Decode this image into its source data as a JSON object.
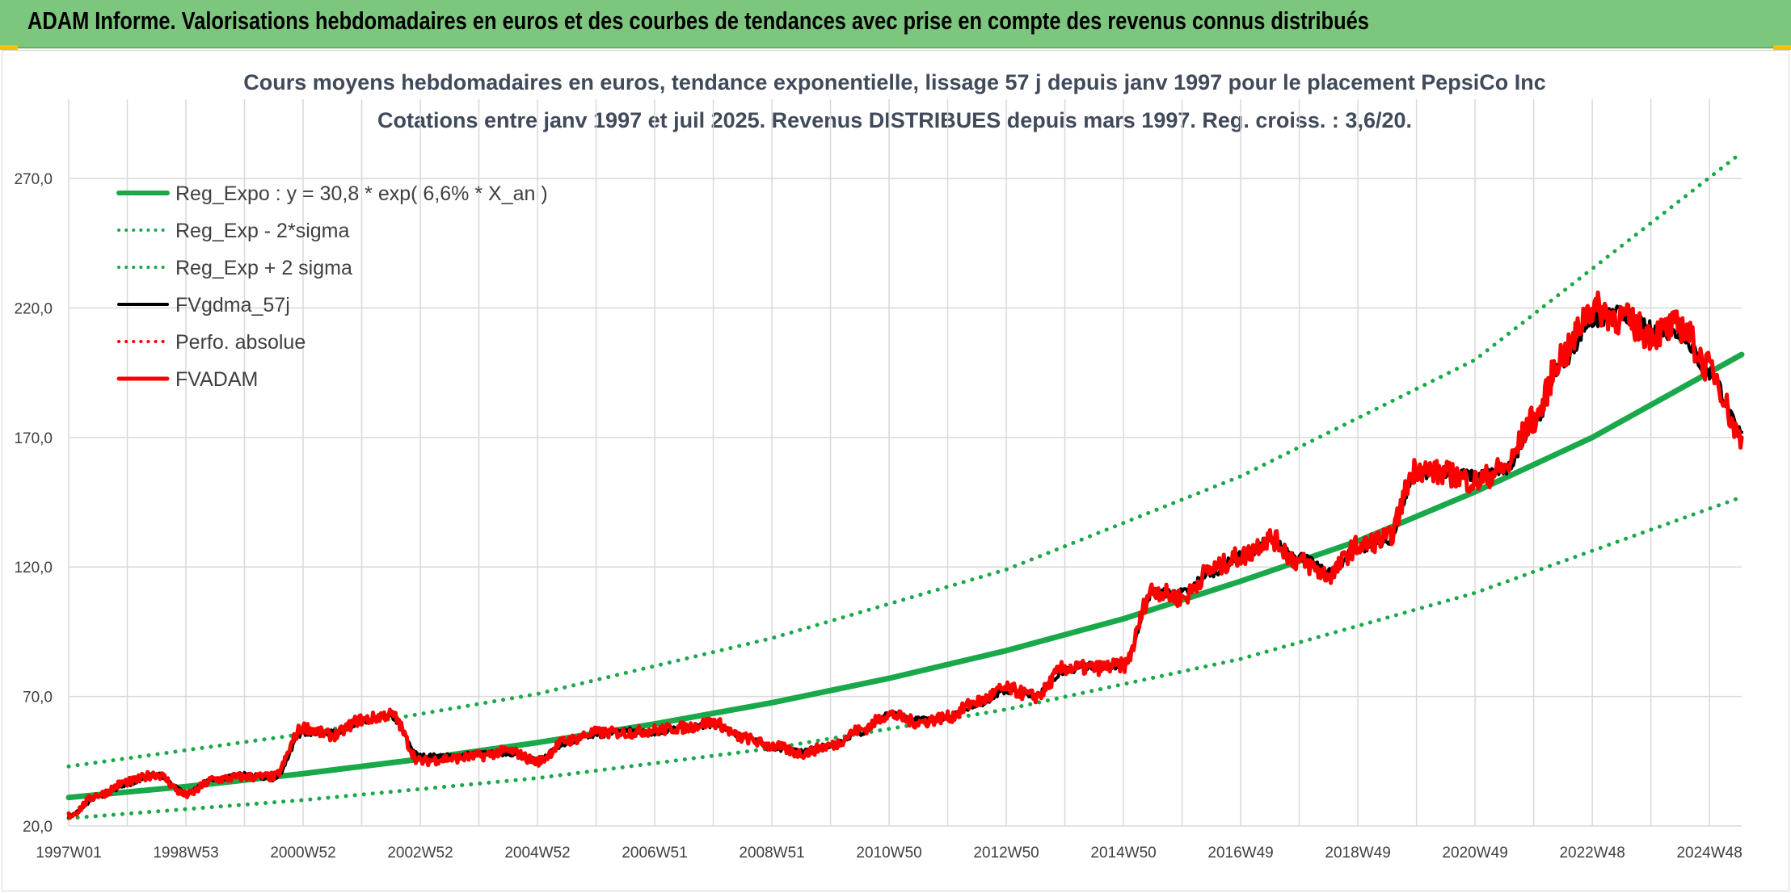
{
  "header": {
    "title": "ADAM Informe. Valorisations hebdomadaires en euros et des courbes de tendances avec prise en compte des revenus connus distribués"
  },
  "colors": {
    "header_bg": "#7dc67e",
    "trend": "#19a84a",
    "smooth": "#000000",
    "adam": "#ff0000",
    "grid": "#d9d9d9"
  },
  "chart_data": {
    "type": "line",
    "title": "Cours moyens hebdomadaires en euros, tendance exponentielle, lissage 57 j depuis janv 1997 pour le placement PepsiCo Inc",
    "subtitle": "Cotations entre janv 1997 et juil 2025. Revenus DISTRIBUES depuis mars 1997. Reg. croiss. : 3,6/20.",
    "xlabel": "",
    "ylabel": "",
    "ylim": [
      20,
      290
    ],
    "yticks": [
      "20,0",
      "70,0",
      "120,0",
      "170,0",
      "220,0",
      "270,0"
    ],
    "ytick_values": [
      20,
      70,
      120,
      170,
      220,
      270
    ],
    "xticks": [
      "1997W01",
      "1998W53",
      "2000W52",
      "2002W52",
      "2004W52",
      "2006W51",
      "2008W51",
      "2010W50",
      "2012W50",
      "2014W50",
      "2016W49",
      "2018W49",
      "2020W49",
      "2022W48",
      "2024W48"
    ],
    "xlim": [
      1997.0,
      2025.55
    ],
    "grid": true,
    "legend_position": "top-left",
    "legend": [
      {
        "label": "Reg_Expo : y = 30,8 * exp( 6,6% *  X_an )",
        "color": "#19a84a",
        "style": "solid",
        "width": 6
      },
      {
        "label": "Reg_Exp - 2*sigma",
        "color": "#19a84a",
        "style": "dotted",
        "width": 4
      },
      {
        "label": "Reg_Exp + 2 sigma",
        "color": "#19a84a",
        "style": "dotted",
        "width": 4
      },
      {
        "label": "FVgdma_57j",
        "color": "#000000",
        "style": "solid",
        "width": 4
      },
      {
        "label": "Perfo. absolue",
        "color": "#ff0000",
        "style": "dotted",
        "width": 3
      },
      {
        "label": "FVADAM",
        "color": "#ff0000",
        "style": "solid",
        "width": 5
      }
    ],
    "series": [
      {
        "name": "Reg_Expo : y = 30,8 * exp( 6,6% *  X_an )",
        "style": "solid",
        "x": [
          1997.0,
          1999.0,
          2001.0,
          2003.0,
          2005.0,
          2007.0,
          2009.0,
          2011.0,
          2013.0,
          2015.0,
          2017.0,
          2019.0,
          2021.0,
          2023.0,
          2025.55
        ],
        "values": [
          31.0,
          35.2,
          40.2,
          45.8,
          52.2,
          59.4,
          67.6,
          77.0,
          87.7,
          100.0,
          114.5,
          130.0,
          149.0,
          170.0,
          202.0
        ]
      },
      {
        "name": "Reg_Exp - 2*sigma",
        "style": "dotted",
        "x": [
          1997.0,
          2001.0,
          2005.0,
          2009.0,
          2013.0,
          2017.0,
          2021.0,
          2025.55
        ],
        "values": [
          23.0,
          30.0,
          38.5,
          50.0,
          65.0,
          84.5,
          110.0,
          147.0
        ]
      },
      {
        "name": "Reg_Exp + 2 sigma",
        "style": "dotted",
        "x": [
          1997.0,
          2001.0,
          2005.0,
          2009.0,
          2013.0,
          2017.0,
          2021.0,
          2025.55
        ],
        "values": [
          43.0,
          55.5,
          71.0,
          92.5,
          119.0,
          155.0,
          200.0,
          280.0
        ]
      },
      {
        "name": "FVgdma_57j",
        "style": "solid",
        "x": [
          1997.0,
          1997.5,
          1998.0,
          1998.5,
          1999.0,
          1999.5,
          2000.0,
          2000.5,
          2001.0,
          2001.5,
          2002.0,
          2002.5,
          2003.0,
          2003.5,
          2004.0,
          2004.5,
          2005.0,
          2005.5,
          2006.0,
          2006.5,
          2007.0,
          2007.5,
          2008.0,
          2008.5,
          2009.0,
          2009.5,
          2010.0,
          2010.5,
          2011.0,
          2011.5,
          2012.0,
          2012.5,
          2013.0,
          2013.5,
          2014.0,
          2014.5,
          2015.0,
          2015.5,
          2016.0,
          2016.5,
          2017.0,
          2017.5,
          2018.0,
          2018.5,
          2019.0,
          2019.5,
          2020.0,
          2020.5,
          2021.0,
          2021.5,
          2022.0,
          2022.5,
          2023.0,
          2023.5,
          2024.0,
          2024.5,
          2025.0,
          2025.55
        ],
        "values": [
          24,
          31,
          36,
          40,
          33,
          38,
          40,
          38,
          56,
          56,
          60,
          62,
          47,
          47,
          48,
          48,
          46,
          52,
          55,
          57,
          56,
          58,
          59,
          55,
          50,
          49,
          51,
          56,
          63,
          61,
          62,
          67,
          72,
          71,
          80,
          82,
          82,
          110,
          110,
          118,
          124,
          130,
          124,
          118,
          127,
          130,
          155,
          157,
          155,
          157,
          175,
          200,
          215,
          218,
          212,
          210,
          195,
          172
        ]
      },
      {
        "name": "FVADAM",
        "style": "solid",
        "x": [
          1997.0,
          1997.5,
          1998.0,
          1998.5,
          1999.0,
          1999.5,
          2000.0,
          2000.5,
          2001.0,
          2001.5,
          2002.0,
          2002.5,
          2003.0,
          2003.5,
          2004.0,
          2004.5,
          2005.0,
          2005.5,
          2006.0,
          2006.5,
          2007.0,
          2007.5,
          2008.0,
          2008.5,
          2009.0,
          2009.5,
          2010.0,
          2010.5,
          2011.0,
          2011.5,
          2012.0,
          2012.5,
          2013.0,
          2013.5,
          2014.0,
          2014.5,
          2015.0,
          2015.5,
          2016.0,
          2016.5,
          2017.0,
          2017.5,
          2018.0,
          2018.5,
          2019.0,
          2019.5,
          2020.0,
          2020.5,
          2021.0,
          2021.5,
          2022.0,
          2022.5,
          2023.0,
          2023.5,
          2024.0,
          2024.5,
          2025.0,
          2025.55
        ],
        "values": [
          24,
          32,
          37,
          40,
          32,
          38,
          39,
          39,
          58,
          55,
          61,
          63,
          45,
          46,
          47,
          49,
          45,
          53,
          56,
          56,
          57,
          58,
          60,
          54,
          51,
          48,
          51,
          57,
          63,
          60,
          62,
          68,
          73,
          70,
          81,
          81,
          82,
          111,
          108,
          119,
          124,
          131,
          122,
          117,
          128,
          131,
          158,
          156,
          153,
          158,
          177,
          202,
          220,
          216,
          210,
          213,
          197,
          170
        ]
      }
    ]
  }
}
